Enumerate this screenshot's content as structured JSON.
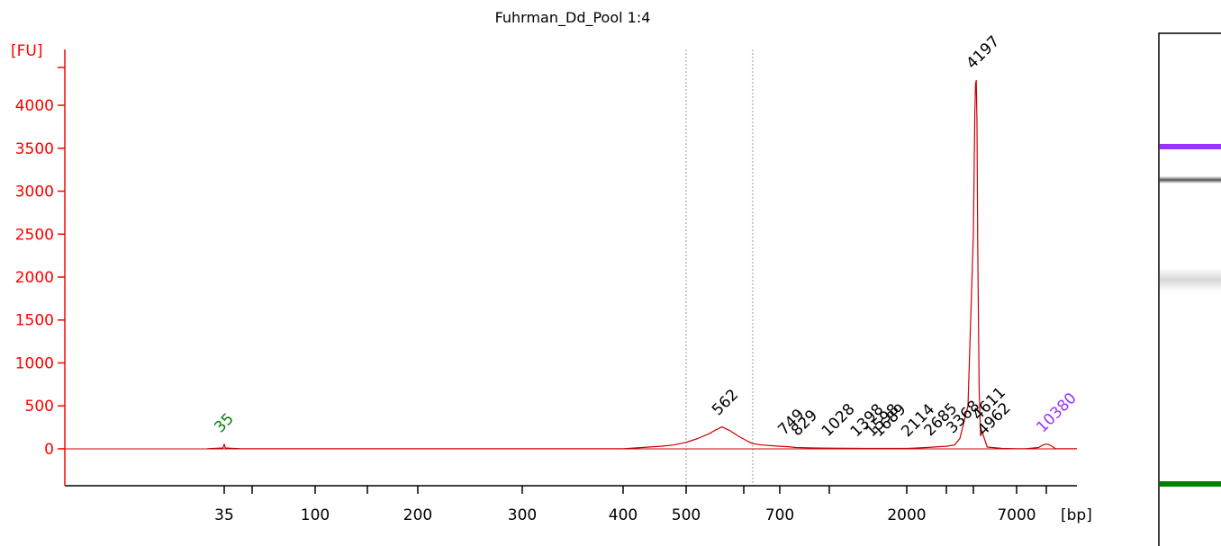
{
  "chart_data": {
    "type": "line",
    "title": "Fuhrman_Dd_Pool 1:4",
    "ylabel": "[FU]",
    "xlabel": "[bp]",
    "ylim": [
      -430,
      4650
    ],
    "y_ticks": [
      0,
      500,
      1000,
      1500,
      2000,
      2500,
      3000,
      3500,
      4000
    ],
    "x_ticks": [
      {
        "label": "35",
        "bp": 35
      },
      {
        "label": "",
        "bp": 60
      },
      {
        "label": "100",
        "bp": 100
      },
      {
        "label": "",
        "bp": 150
      },
      {
        "label": "200",
        "bp": 200
      },
      {
        "label": "300",
        "bp": 300
      },
      {
        "label": "400",
        "bp": 400
      },
      {
        "label": "500",
        "bp": 500
      },
      {
        "label": "",
        "bp": 600
      },
      {
        "label": "700",
        "bp": 700
      },
      {
        "label": "",
        "bp": 1000
      },
      {
        "label": "2000",
        "bp": 2000
      },
      {
        "label": "",
        "bp": 3000
      },
      {
        "label": "",
        "bp": 4000
      },
      {
        "label": "7000",
        "bp": 7000
      },
      {
        "label": "",
        "bp": 10380
      }
    ],
    "region_bounds_bp": [
      500,
      625
    ],
    "series": [
      {
        "x": [
          20,
          34,
          35,
          36,
          50,
          400,
          430,
          460,
          480,
          500,
          520,
          540,
          550,
          562,
          575,
          590,
          610,
          625,
          650,
          700,
          750,
          800,
          900,
          1000,
          1500,
          2000,
          2500,
          3000,
          3300,
          3500,
          3800,
          4000,
          4100,
          4150,
          4197,
          4250,
          4300,
          4400,
          4500,
          4611,
          4700,
          4962,
          6000,
          7000,
          8000,
          9500,
          10000,
          10380,
          10800,
          11500,
          14000
        ],
        "y": [
          0,
          10,
          55,
          10,
          0,
          0,
          15,
          30,
          45,
          75,
          120,
          175,
          215,
          255,
          215,
          150,
          90,
          60,
          45,
          30,
          25,
          15,
          10,
          8,
          5,
          5,
          15,
          30,
          45,
          120,
          500,
          2500,
          3900,
          4250,
          4290,
          3800,
          2400,
          700,
          150,
          200,
          150,
          20,
          5,
          0,
          0,
          15,
          45,
          55,
          45,
          0,
          0
        ]
      }
    ],
    "peak_labels": [
      {
        "label": "35",
        "bp": 35,
        "fu": 55,
        "color": "#008000"
      },
      {
        "label": "562",
        "bp": 562,
        "fu": 255,
        "color": "#000000"
      },
      {
        "label": "749",
        "bp": 749,
        "fu": 25,
        "color": "#000000"
      },
      {
        "label": "829",
        "bp": 829,
        "fu": 15,
        "color": "#000000"
      },
      {
        "label": "1028",
        "bp": 1028,
        "fu": 8,
        "color": "#000000"
      },
      {
        "label": "1398",
        "bp": 1398,
        "fu": 5,
        "color": "#000000"
      },
      {
        "label": "1598",
        "bp": 1598,
        "fu": 5,
        "color": "#000000"
      },
      {
        "label": "1689",
        "bp": 1689,
        "fu": 5,
        "color": "#000000"
      },
      {
        "label": "2114",
        "bp": 2114,
        "fu": 5,
        "color": "#000000"
      },
      {
        "label": "2685",
        "bp": 2685,
        "fu": 15,
        "color": "#000000"
      },
      {
        "label": "3368",
        "bp": 3368,
        "fu": 45,
        "color": "#000000"
      },
      {
        "label": "4197",
        "bp": 4197,
        "fu": 4290,
        "color": "#000000"
      },
      {
        "label": "4611",
        "bp": 4611,
        "fu": 200,
        "color": "#000000"
      },
      {
        "label": "4962",
        "bp": 4962,
        "fu": 20,
        "color": "#000000"
      },
      {
        "label": "10380",
        "bp": 10380,
        "fu": 55,
        "color": "#9933ff"
      }
    ],
    "colors": {
      "axis": "#ff0000",
      "trace": "#c80000",
      "lower_marker": "#008000",
      "upper_marker": "#9933ff"
    },
    "gel": {
      "bands": [
        {
          "name": "upper-marker",
          "color": "#9933ff"
        },
        {
          "name": "high-mw-band",
          "color": "#444444"
        },
        {
          "name": "smear-band",
          "color": "#cccccc"
        },
        {
          "name": "lower-marker",
          "color": "#008000"
        }
      ]
    }
  }
}
